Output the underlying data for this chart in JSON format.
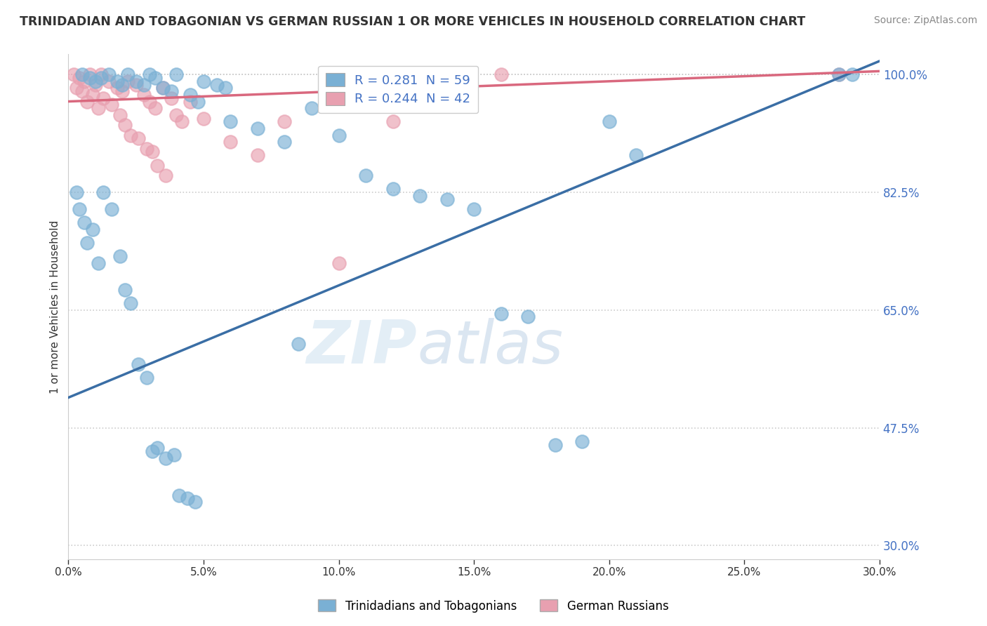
{
  "title": "TRINIDADIAN AND TOBAGONIAN VS GERMAN RUSSIAN 1 OR MORE VEHICLES IN HOUSEHOLD CORRELATION CHART",
  "source": "Source: ZipAtlas.com",
  "xlabel_ticks": [
    "0.0%",
    "5.0%",
    "10.0%",
    "15.0%",
    "20.0%",
    "25.0%",
    "30.0%"
  ],
  "xlabel_vals": [
    0.0,
    5.0,
    10.0,
    15.0,
    20.0,
    25.0,
    30.0
  ],
  "ylabel": "1 or more Vehicles in Household",
  "ylabel_ticks": [
    "30.0%",
    "47.5%",
    "65.0%",
    "82.5%",
    "100.0%"
  ],
  "ylabel_vals": [
    30.0,
    47.5,
    65.0,
    82.5,
    100.0
  ],
  "xmin": 0.0,
  "xmax": 30.0,
  "ymin": 28.0,
  "ymax": 103.0,
  "blue_r": 0.281,
  "blue_n": 59,
  "pink_r": 0.244,
  "pink_n": 42,
  "blue_color": "#7ab0d4",
  "pink_color": "#e8a0b0",
  "blue_line_color": "#3a6ea5",
  "pink_line_color": "#d9687e",
  "legend_label_blue": "Trinidadians and Tobagonians",
  "legend_label_pink": "German Russians",
  "watermark_zip": "ZIP",
  "watermark_atlas": "atlas",
  "blue_x": [
    0.3,
    0.4,
    0.5,
    0.6,
    0.7,
    0.8,
    0.9,
    1.0,
    1.1,
    1.2,
    1.3,
    1.5,
    1.6,
    1.8,
    1.9,
    2.0,
    2.1,
    2.2,
    2.3,
    2.5,
    2.6,
    2.8,
    2.9,
    3.0,
    3.1,
    3.2,
    3.3,
    3.5,
    3.6,
    3.8,
    3.9,
    4.0,
    4.1,
    4.4,
    4.5,
    4.7,
    4.8,
    5.0,
    5.5,
    6.0,
    7.0,
    8.0,
    8.5,
    9.0,
    10.0,
    11.0,
    12.0,
    13.0,
    14.0,
    15.0,
    16.0,
    17.0,
    18.0,
    19.0,
    20.0,
    21.0,
    28.5,
    29.0,
    5.8
  ],
  "blue_y": [
    82.5,
    80.0,
    100.0,
    78.0,
    75.0,
    99.5,
    77.0,
    99.0,
    72.0,
    99.5,
    82.5,
    100.0,
    80.0,
    99.0,
    73.0,
    98.5,
    68.0,
    100.0,
    66.0,
    99.0,
    57.0,
    98.5,
    55.0,
    100.0,
    44.0,
    99.5,
    44.5,
    98.0,
    43.0,
    97.5,
    43.5,
    100.0,
    37.5,
    37.0,
    97.0,
    36.5,
    96.0,
    99.0,
    98.5,
    93.0,
    92.0,
    90.0,
    60.0,
    95.0,
    91.0,
    85.0,
    83.0,
    82.0,
    81.5,
    80.0,
    64.5,
    64.0,
    45.0,
    45.5,
    93.0,
    88.0,
    100.0,
    100.0,
    98.0
  ],
  "pink_x": [
    0.2,
    0.3,
    0.4,
    0.5,
    0.6,
    0.7,
    0.8,
    0.9,
    1.0,
    1.1,
    1.2,
    1.3,
    1.5,
    1.6,
    1.8,
    1.9,
    2.0,
    2.1,
    2.2,
    2.3,
    2.5,
    2.6,
    2.8,
    2.9,
    3.0,
    3.1,
    3.2,
    3.3,
    3.5,
    3.6,
    3.8,
    4.0,
    4.2,
    4.5,
    5.0,
    6.0,
    7.0,
    8.0,
    10.0,
    12.0,
    16.0,
    28.5
  ],
  "pink_y": [
    100.0,
    98.0,
    99.5,
    97.5,
    99.0,
    96.0,
    100.0,
    97.0,
    98.5,
    95.0,
    100.0,
    96.5,
    99.0,
    95.5,
    98.0,
    94.0,
    97.5,
    92.5,
    99.0,
    91.0,
    98.5,
    90.5,
    97.0,
    89.0,
    96.0,
    88.5,
    95.0,
    86.5,
    98.0,
    85.0,
    96.5,
    94.0,
    93.0,
    96.0,
    93.5,
    90.0,
    88.0,
    93.0,
    72.0,
    93.0,
    100.0,
    100.0
  ],
  "blue_line_x": [
    0.0,
    30.0
  ],
  "blue_line_y": [
    52.0,
    102.0
  ],
  "pink_line_x": [
    0.0,
    30.0
  ],
  "pink_line_y": [
    96.0,
    100.5
  ]
}
